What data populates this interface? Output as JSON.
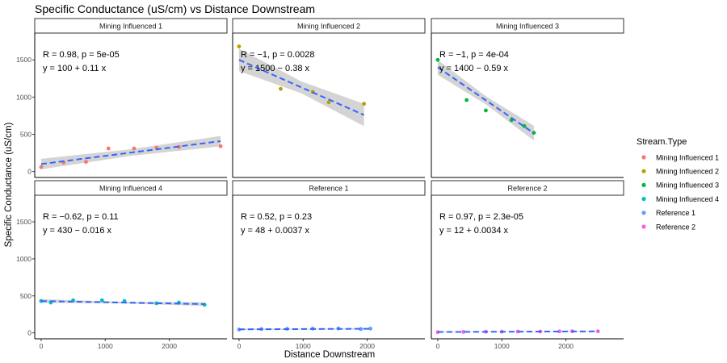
{
  "chart_data": {
    "type": "scatter",
    "title": "Specific Conductance (uS/cm) vs Distance Downstream",
    "xlabel": "Distance Downstream",
    "ylabel": "Specific Conductance (uS/cm)",
    "facet_layout": "3 columns x 2 rows, shared axes",
    "xlim": [
      -100,
      2900
    ],
    "ylim": [
      -80,
      1860
    ],
    "x_ticks": [
      0,
      1000,
      2000
    ],
    "x_tick_labels": [
      "0",
      "1000",
      "2000"
    ],
    "y_ticks": [
      0,
      500,
      1000,
      1500
    ],
    "y_tick_labels": [
      "0",
      "500",
      "1000",
      "1500"
    ],
    "legend": {
      "title": "Stream.Type",
      "placement": "right",
      "entries": [
        {
          "label": "Mining Influenced 1",
          "color": "#F8766D"
        },
        {
          "label": "Mining Influenced 2",
          "color": "#B79F00"
        },
        {
          "label": "Mining Influenced 3",
          "color": "#00BA38"
        },
        {
          "label": "Mining Influenced 4",
          "color": "#00BFC4"
        },
        {
          "label": "Reference 1",
          "color": "#619CFF"
        },
        {
          "label": "Reference 2",
          "color": "#F564E3"
        }
      ]
    },
    "fit_line_color": "#3366FF",
    "ribbon_color": "#CCCCCC",
    "panels": [
      {
        "name": "Mining Influenced 1",
        "color": "#F8766D",
        "stat_r": "R = 0.98, p = 5e-05",
        "equation": "y = 100 + 0.11 x",
        "intercept": 100,
        "slope": 0.11,
        "fit_x": [
          0,
          2800
        ],
        "ci_halfwidth": [
          70,
          45,
          70
        ],
        "x": [
          0,
          350,
          700,
          1050,
          1450,
          1800,
          2150,
          2800
        ],
        "y": [
          60,
          120,
          130,
          310,
          310,
          320,
          330,
          340
        ]
      },
      {
        "name": "Mining Influenced 2",
        "color": "#B79F00",
        "stat_r": "R = −1, p = 0.0028",
        "equation": "y = 1500 − 0.38 x",
        "intercept": 1500,
        "slope": -0.38,
        "fit_x": [
          0,
          1950
        ],
        "ci_halfwidth": [
          150,
          80,
          150
        ],
        "x": [
          0,
          650,
          1150,
          1400,
          1950
        ],
        "y": [
          1680,
          1110,
          1070,
          930,
          910
        ]
      },
      {
        "name": "Mining Influenced 3",
        "color": "#00BA38",
        "stat_r": "R = −1, p = 4e-04",
        "equation": "y = 1400 − 0.59 x",
        "intercept": 1400,
        "slope": -0.59,
        "fit_x": [
          0,
          1500
        ],
        "ci_halfwidth": [
          100,
          55,
          100
        ],
        "x": [
          0,
          450,
          750,
          1150,
          1350,
          1500
        ],
        "y": [
          1500,
          960,
          820,
          690,
          610,
          520
        ]
      },
      {
        "name": "Mining Influenced 4",
        "color": "#00BFC4",
        "stat_r": "R = −0.62, p = 0.11",
        "equation": "y = 430 − 0.016 x",
        "intercept": 430,
        "slope": -0.016,
        "fit_x": [
          0,
          2550
        ],
        "ci_halfwidth": [
          25,
          12,
          25
        ],
        "x": [
          0,
          150,
          500,
          950,
          1300,
          1800,
          2150,
          2550
        ],
        "y": [
          430,
          410,
          440,
          440,
          430,
          400,
          410,
          380
        ]
      },
      {
        "name": "Reference 1",
        "color": "#619CFF",
        "stat_r": "R = 0.52, p = 0.23",
        "equation": "y = 48 + 0.0037 x",
        "intercept": 48,
        "slope": 0.0037,
        "fit_x": [
          0,
          2050
        ],
        "ci_halfwidth": [
          10,
          6,
          10
        ],
        "x": [
          0,
          350,
          750,
          1150,
          1550,
          1900,
          2050
        ],
        "y": [
          45,
          52,
          55,
          58,
          60,
          52,
          58
        ]
      },
      {
        "name": "Reference 2",
        "color": "#F564E3",
        "stat_r": "R = 0.97, p = 2.3e-05",
        "equation": "y = 12 + 0.0034 x",
        "intercept": 12,
        "slope": 0.0034,
        "fit_x": [
          0,
          2500
        ],
        "ci_halfwidth": [
          5,
          3,
          5
        ],
        "x": [
          0,
          400,
          750,
          1000,
          1250,
          1600,
          1900,
          2100,
          2500
        ],
        "y": [
          10,
          14,
          16,
          16,
          18,
          18,
          20,
          22,
          22
        ]
      }
    ]
  }
}
